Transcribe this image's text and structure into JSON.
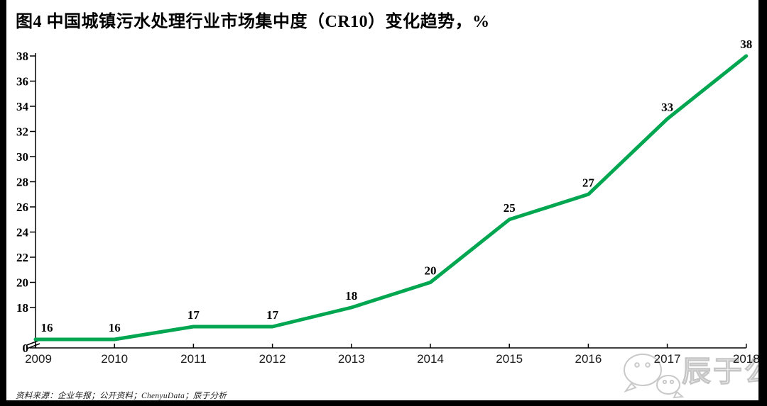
{
  "title": "图4 中国城镇污水处理行业市场集中度（CR10）变化趋势，%",
  "source_note": "资料来源：企业年报；公开资料；ChenyuData；辰于分析",
  "watermark": {
    "label": "辰于公司",
    "icon": "wechat-icon"
  },
  "chart_data": {
    "type": "line",
    "title": "中国城镇污水处理行业市场集中度（CR10）变化趋势",
    "unit": "%",
    "categories": [
      "2009",
      "2010",
      "2011",
      "2012",
      "2013",
      "2014",
      "2015",
      "2016",
      "2017",
      "2018"
    ],
    "series": [
      {
        "name": "CR10",
        "values": [
          16,
          16,
          17,
          17,
          18,
          20,
          25,
          27,
          33,
          38
        ]
      }
    ],
    "y_ticks": [
      0,
      18,
      20,
      22,
      24,
      26,
      28,
      30,
      32,
      34,
      36,
      38
    ],
    "ylim": [
      0,
      38
    ],
    "axis_break": true,
    "grid": false,
    "legend_position": "none",
    "line_color": "#00A650",
    "axis_color": "#000000"
  }
}
